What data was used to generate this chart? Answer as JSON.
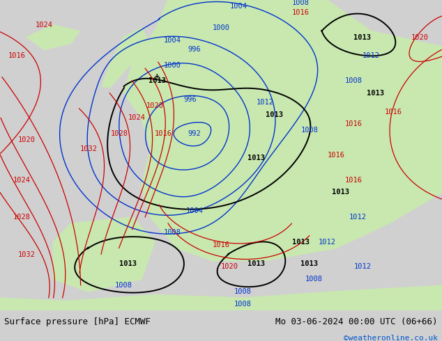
{
  "title_left": "Surface pressure [hPa] ECMWF",
  "title_right": "Mo 03-06-2024 00:00 UTC (06+66)",
  "copyright": "©weatheronline.co.uk",
  "bg_color": "#d0d0d0",
  "land_color": "#c8e8b0",
  "sea_color": "#e0e0e0",
  "bottom_bar_color": "#ffffff",
  "bottom_bar_height": 0.09,
  "fig_width": 6.34,
  "fig_height": 4.9,
  "dpi": 100,
  "title_fontsize": 9,
  "copyright_color": "#0055cc",
  "label_fontsize": 7.5,
  "red": "#cc0000",
  "blue": "#0033cc",
  "black": "#000000"
}
